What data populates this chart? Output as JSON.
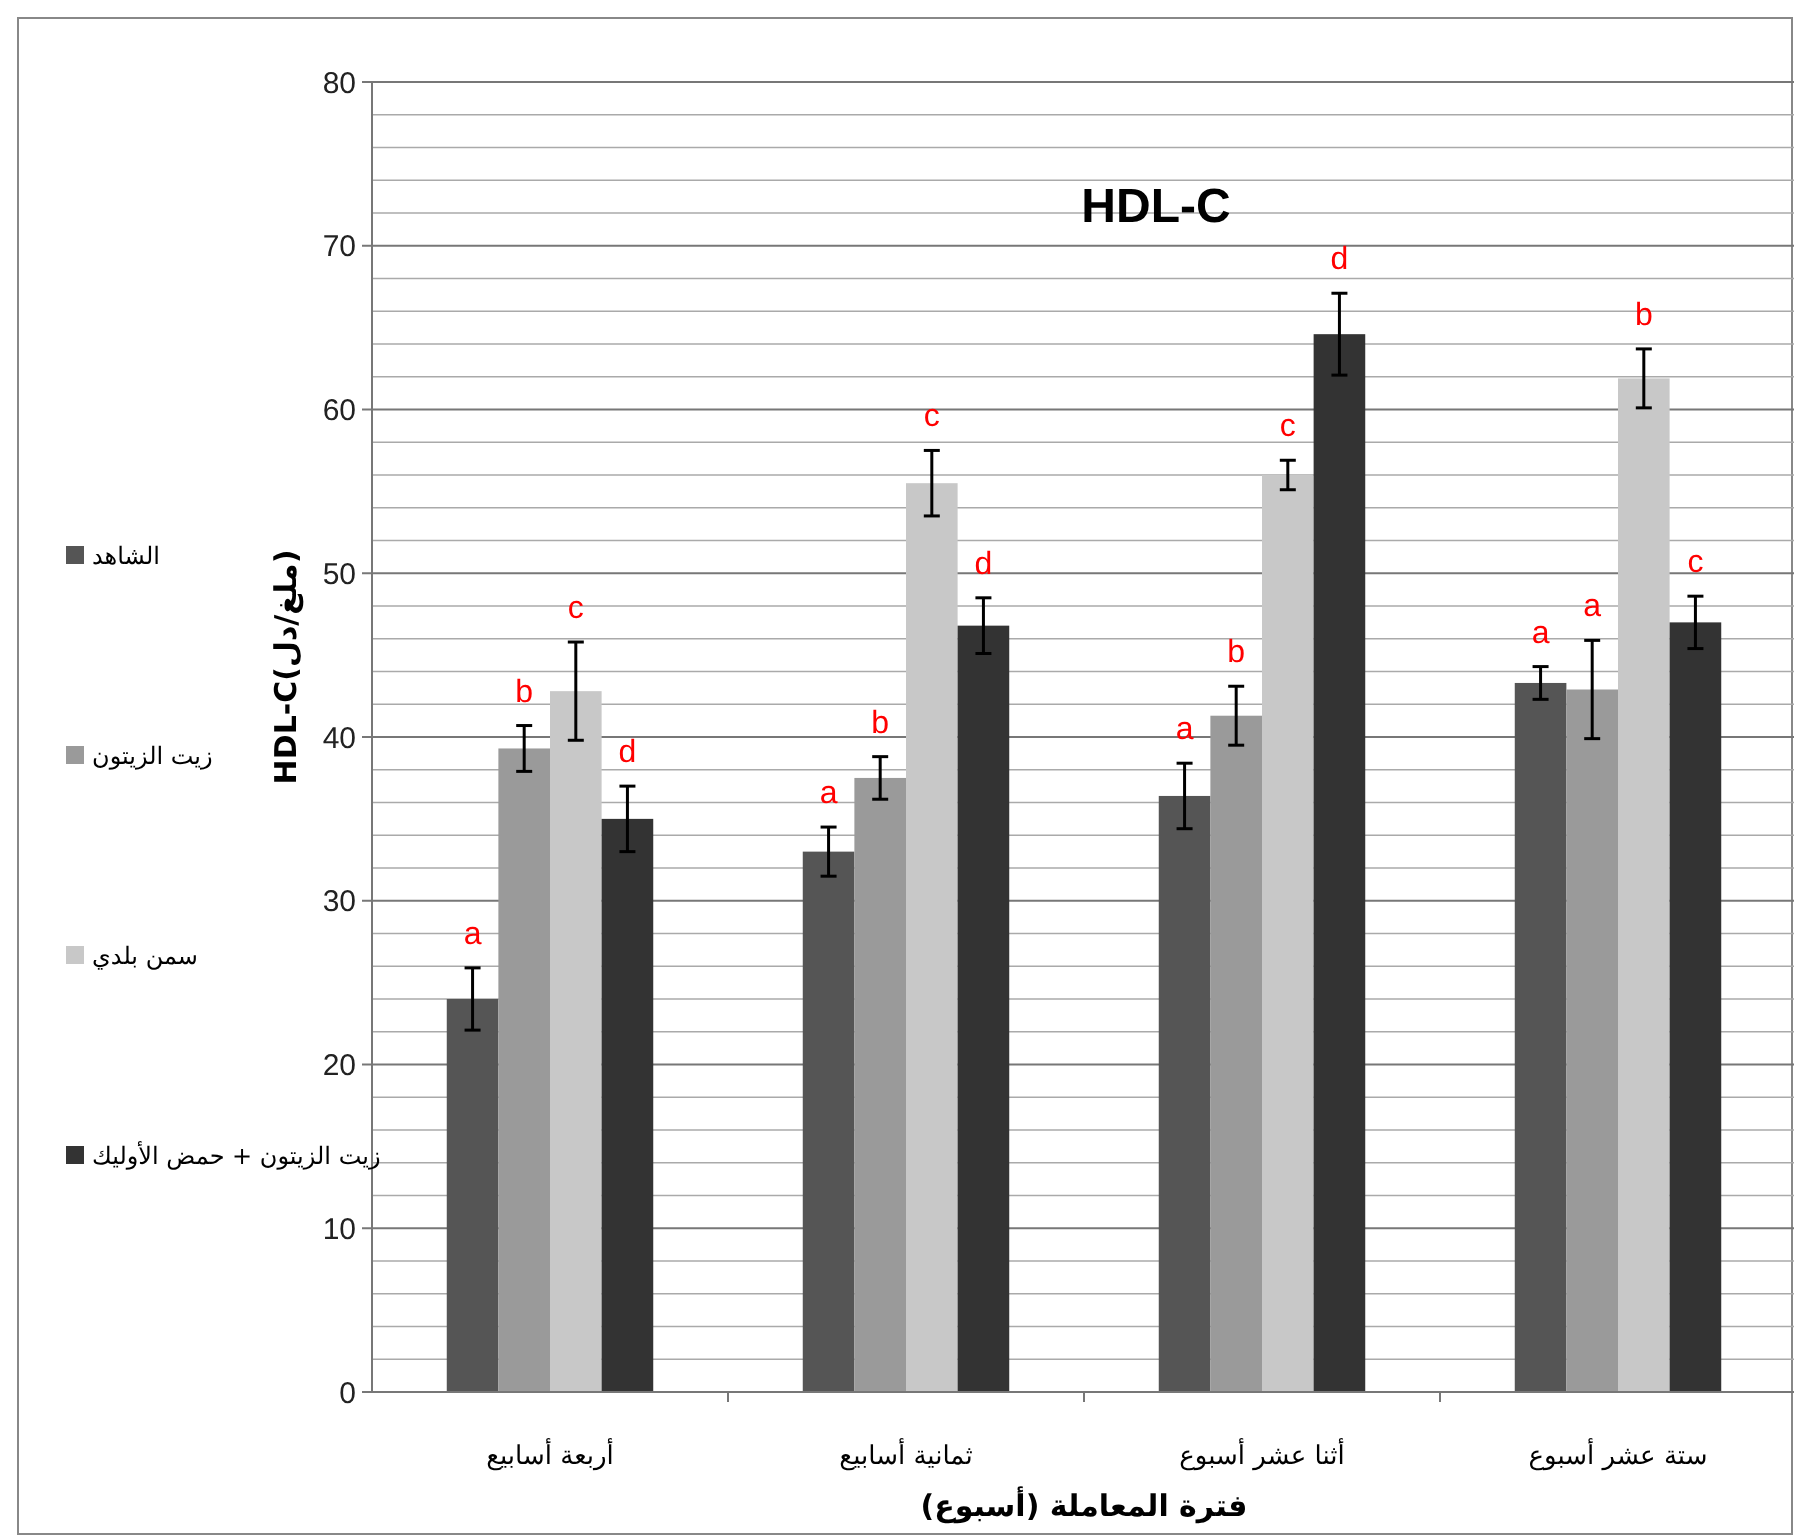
{
  "chart_data": {
    "type": "bar",
    "title": "HDL-C",
    "xlabel": "فترة المعاملة (أسبوع)",
    "ylabel": "HDL-C(ملغ/دل)",
    "categories": [
      "أربعة أسابيع",
      "ثمانية أسابيع",
      "أثنا عشر أسبوع",
      "ستة عشر أسبوع"
    ],
    "series": [
      {
        "name": "الشاهد",
        "color": "#555555",
        "values": [
          24,
          33,
          36.4,
          43.3
        ],
        "errors": [
          1.9,
          1.5,
          2,
          1
        ],
        "value_labels": [
          "a",
          "a",
          "a",
          "a"
        ]
      },
      {
        "name": "زيت الزيتون",
        "color": "#9a9a9a",
        "values": [
          39.3,
          37.5,
          41.3,
          42.9
        ],
        "errors": [
          1.4,
          1.3,
          1.8,
          3
        ],
        "value_labels": [
          "b",
          "b",
          "b",
          "a"
        ]
      },
      {
        "name": "سمن بلدي",
        "color": "#c8c8c8",
        "values": [
          42.8,
          55.5,
          56,
          61.9
        ],
        "errors": [
          3,
          2,
          0.9,
          1.8
        ],
        "value_labels": [
          "c",
          "c",
          "c",
          "b"
        ]
      },
      {
        "name": "زيت الزيتون + حمض الأوليك",
        "color": "#333333",
        "values": [
          35,
          46.8,
          64.6,
          47
        ],
        "errors": [
          2,
          1.7,
          2.5,
          1.6
        ],
        "value_labels": [
          "d",
          "d",
          "d",
          "c"
        ]
      }
    ],
    "ylim": [
      0,
      80
    ],
    "yticks": [
      0,
      10,
      20,
      30,
      40,
      50,
      60,
      70,
      80
    ],
    "grid": true,
    "legend": "left"
  }
}
